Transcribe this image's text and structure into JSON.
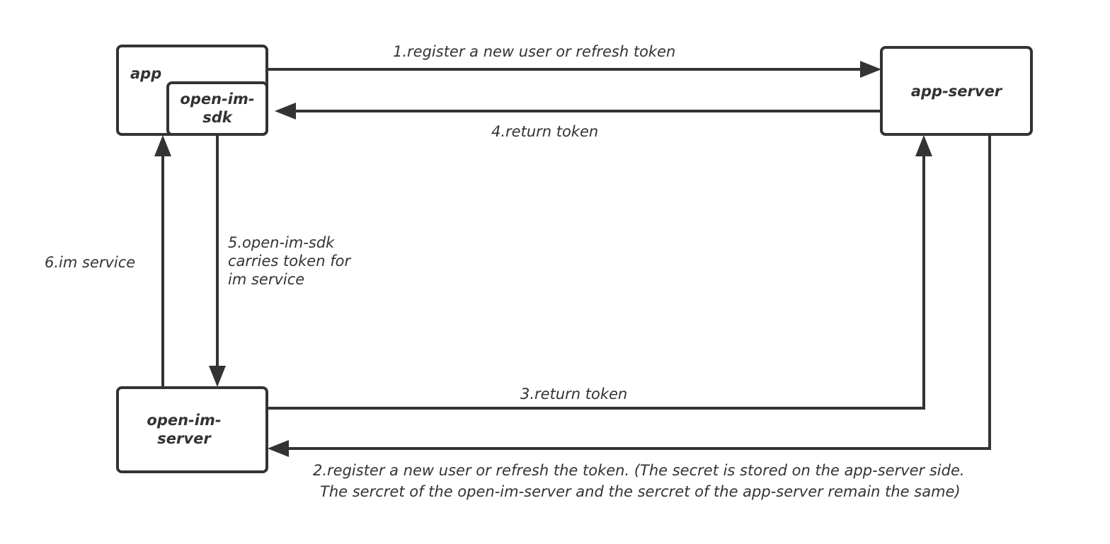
{
  "nodes": {
    "app": "app",
    "sdk": "open-im-sdk",
    "app_server": "app-server",
    "im_server": "open-im-server"
  },
  "edges": {
    "e1": "1.register a new user or refresh token",
    "e2_line1": "2.register a new user or refresh the token. (The secret is stored on the app-server side.",
    "e2_line2": "The sercret of the open-im-server and the sercret of the app-server remain the same)",
    "e3": "3.return token",
    "e4": "4.return token",
    "e5": "5.open-im-sdk carries token for im service",
    "e6": "6.im service"
  },
  "colors": {
    "stroke": "#333333",
    "background": "#ffffff"
  }
}
